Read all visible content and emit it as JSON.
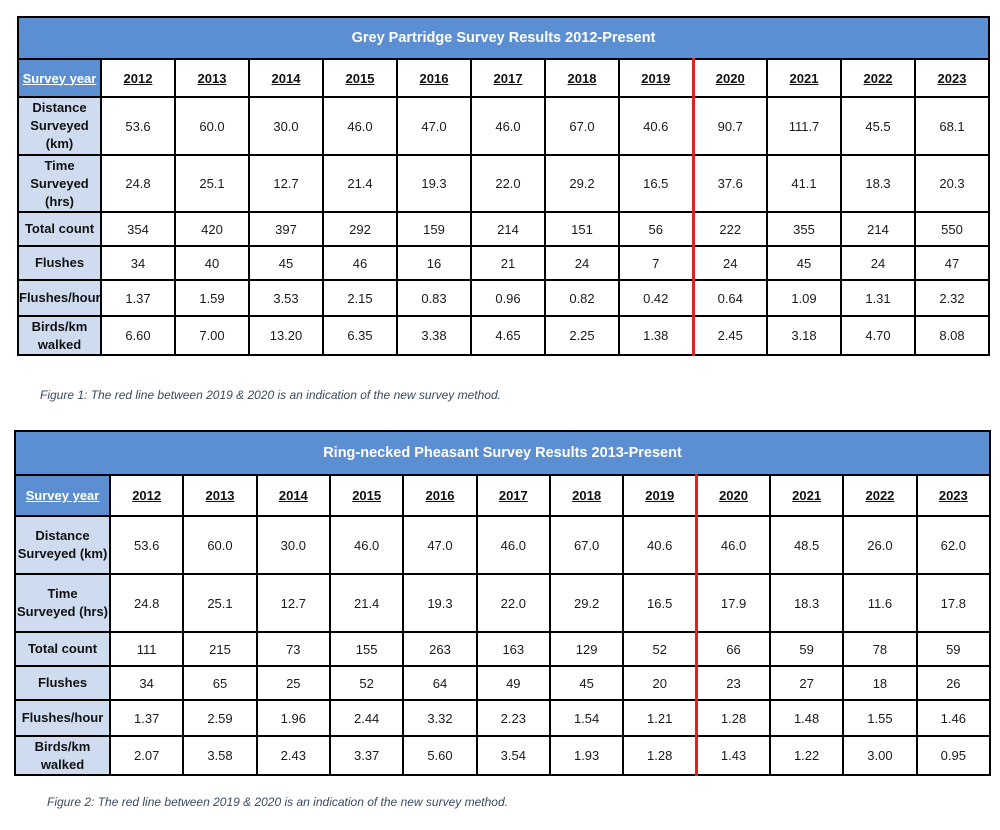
{
  "tables": [
    {
      "title": "Grey Partridge Survey Results 2012-Present",
      "header_label": "Survey year",
      "years": [
        "2012",
        "2013",
        "2014",
        "2015",
        "2016",
        "2017",
        "2018",
        "2019",
        "2020",
        "2021",
        "2022",
        "2023"
      ],
      "rows": [
        {
          "label_lines": [
            "Distance",
            "Surveyed",
            "(km)"
          ],
          "values": [
            "53.6",
            "60.0",
            "30.0",
            "46.0",
            "47.0",
            "46.0",
            "67.0",
            "40.6",
            "90.7",
            "111.7",
            "45.5",
            "68.1"
          ]
        },
        {
          "label_lines": [
            "Time",
            "Surveyed",
            "(hrs)"
          ],
          "values": [
            "24.8",
            "25.1",
            "12.7",
            "21.4",
            "19.3",
            "22.0",
            "29.2",
            "16.5",
            "37.6",
            "41.1",
            "18.3",
            "20.3"
          ]
        },
        {
          "label_lines": [
            "Total count"
          ],
          "values": [
            "354",
            "420",
            "397",
            "292",
            "159",
            "214",
            "151",
            "56",
            "222",
            "355",
            "214",
            "550"
          ]
        },
        {
          "label_lines": [
            "Flushes"
          ],
          "values": [
            "34",
            "40",
            "45",
            "46",
            "16",
            "21",
            "24",
            "7",
            "24",
            "45",
            "24",
            "47"
          ]
        },
        {
          "label_lines": [
            "Flushes/hour"
          ],
          "values": [
            "1.37",
            "1.59",
            "3.53",
            "2.15",
            "0.83",
            "0.96",
            "0.82",
            "0.42",
            "0.64",
            "1.09",
            "1.31",
            "2.32"
          ]
        },
        {
          "label_lines": [
            "Birds/km",
            "walked"
          ],
          "values": [
            "6.60",
            "7.00",
            "13.20",
            "6.35",
            "3.38",
            "4.65",
            "2.25",
            "1.38",
            "2.45",
            "3.18",
            "4.70",
            "8.08"
          ]
        }
      ],
      "caption": "Figure 1: The red line between 2019 & 2020 is an indication of the new survey method."
    },
    {
      "title": "Ring-necked Pheasant Survey Results 2013-Present",
      "header_label": "Survey year",
      "years": [
        "2012",
        "2013",
        "2014",
        "2015",
        "2016",
        "2017",
        "2018",
        "2019",
        "2020",
        "2021",
        "2022",
        "2023"
      ],
      "rows": [
        {
          "label_lines": [
            "Distance",
            "Surveyed (km)"
          ],
          "values": [
            "53.6",
            "60.0",
            "30.0",
            "46.0",
            "47.0",
            "46.0",
            "67.0",
            "40.6",
            "46.0",
            "48.5",
            "26.0",
            "62.0"
          ]
        },
        {
          "label_lines": [
            "Time",
            "Surveyed (hrs)"
          ],
          "values": [
            "24.8",
            "25.1",
            "12.7",
            "21.4",
            "19.3",
            "22.0",
            "29.2",
            "16.5",
            "17.9",
            "18.3",
            "11.6",
            "17.8"
          ]
        },
        {
          "label_lines": [
            "Total count"
          ],
          "values": [
            "111",
            "215",
            "73",
            "155",
            "263",
            "163",
            "129",
            "52",
            "66",
            "59",
            "78",
            "59"
          ]
        },
        {
          "label_lines": [
            "Flushes"
          ],
          "values": [
            "34",
            "65",
            "25",
            "52",
            "64",
            "49",
            "45",
            "20",
            "23",
            "27",
            "18",
            "26"
          ]
        },
        {
          "label_lines": [
            "Flushes/hour"
          ],
          "values": [
            "1.37",
            "2.59",
            "1.96",
            "2.44",
            "3.32",
            "2.23",
            "1.54",
            "1.21",
            "1.28",
            "1.48",
            "1.55",
            "1.46"
          ]
        },
        {
          "label_lines": [
            "Birds/km",
            "walked"
          ],
          "values": [
            "2.07",
            "3.58",
            "2.43",
            "3.37",
            "5.60",
            "3.54",
            "1.93",
            "1.28",
            "1.43",
            "1.22",
            "3.00",
            "0.95"
          ]
        }
      ],
      "caption": "Figure 2: The red line between 2019 & 2020 is an indication of the new survey method."
    }
  ],
  "colors": {
    "title_bg": "#5b8fd1",
    "rowhead_bg": "#cfdcf0",
    "divider": "#e0231f"
  }
}
